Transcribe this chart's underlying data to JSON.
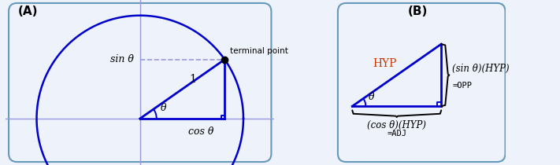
{
  "panel_A_label": "(A)",
  "panel_B_label": "(B)",
  "blue_dark": "#0000CC",
  "blue_light": "#9999DD",
  "blue_border": "#6699BB",
  "bg_color": "#EEF2FA",
  "theta_deg": 35,
  "fig_width": 7.11,
  "fig_height": 2.1,
  "dpi": 100,
  "sin_label": "sin θ",
  "cos_label": "cos θ",
  "theta_label": "θ",
  "one_label": "1",
  "terminal_label": "terminal point",
  "hyp_label": "HYP",
  "hyp_color": "#CC3300",
  "opp_label": "(sin θ)(HYP)",
  "adj_label": "(cos θ)(HYP)",
  "opp_eq": "=OPP",
  "adj_eq": "=ADJ"
}
